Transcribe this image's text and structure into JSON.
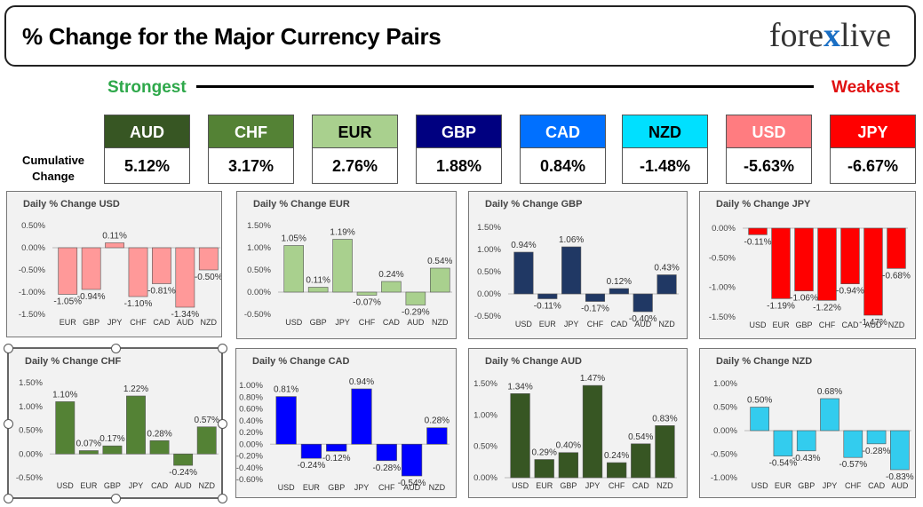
{
  "header": {
    "title": "% Change for the Major Currency Pairs",
    "logo_part1": "fore",
    "logo_x": "x",
    "logo_part2": "live"
  },
  "scale": {
    "strongest": "Strongest",
    "weakest": "Weakest"
  },
  "cumulative": {
    "label_line1": "Cumulative",
    "label_line2": "Change",
    "items": [
      {
        "ccy": "AUD",
        "value": "5.12%",
        "bg": "#375623",
        "fg": "#ffffff"
      },
      {
        "ccy": "CHF",
        "value": "3.17%",
        "bg": "#548235",
        "fg": "#ffffff"
      },
      {
        "ccy": "EUR",
        "value": "2.76%",
        "bg": "#a9d08e",
        "fg": "#000000"
      },
      {
        "ccy": "GBP",
        "value": "1.88%",
        "bg": "#000080",
        "fg": "#ffffff"
      },
      {
        "ccy": "CAD",
        "value": "0.84%",
        "bg": "#0070ff",
        "fg": "#ffffff"
      },
      {
        "ccy": "NZD",
        "value": "-1.48%",
        "bg": "#00e0ff",
        "fg": "#000000"
      },
      {
        "ccy": "USD",
        "value": "-5.63%",
        "bg": "#ff7c80",
        "fg": "#ffffff"
      },
      {
        "ccy": "JPY",
        "value": "-6.67%",
        "bg": "#ff0000",
        "fg": "#ffffff"
      }
    ]
  },
  "chart_data": [
    {
      "type": "bar",
      "title": "Daily % Change USD",
      "categories": [
        "EUR",
        "GBP",
        "JPY",
        "CHF",
        "CAD",
        "AUD",
        "NZD"
      ],
      "values": [
        -1.05,
        -0.94,
        0.11,
        -1.1,
        -0.81,
        -1.34,
        -0.5
      ],
      "labels": [
        "-1.05%",
        "-0.94%",
        "0.11%",
        "-1.10%",
        "-0.81%",
        "-1.34%",
        "-0.50%"
      ],
      "yticks": [
        "0.50%",
        "0.00%",
        "-0.50%",
        "-1.00%",
        "-1.50%"
      ],
      "ylim": [
        -1.5,
        0.5
      ],
      "color": "#ff9999"
    },
    {
      "type": "bar",
      "title": "Daily % Change EUR",
      "categories": [
        "USD",
        "GBP",
        "JPY",
        "CHF",
        "CAD",
        "AUD",
        "NZD"
      ],
      "values": [
        1.05,
        0.11,
        1.19,
        -0.07,
        0.24,
        -0.29,
        0.54
      ],
      "labels": [
        "1.05%",
        "0.11%",
        "1.19%",
        "-0.07%",
        "0.24%",
        "-0.29%",
        "0.54%"
      ],
      "yticks": [
        "1.50%",
        "1.00%",
        "0.50%",
        "0.00%",
        "-0.50%"
      ],
      "ylim": [
        -0.5,
        1.5
      ],
      "color": "#a9d08e"
    },
    {
      "type": "bar",
      "title": "Daily % Change GBP",
      "categories": [
        "USD",
        "EUR",
        "JPY",
        "CHF",
        "CAD",
        "AUD",
        "NZD"
      ],
      "values": [
        0.94,
        -0.11,
        1.06,
        -0.17,
        0.12,
        -0.4,
        0.43
      ],
      "labels": [
        "0.94%",
        "-0.11%",
        "1.06%",
        "-0.17%",
        "0.12%",
        "-0.40%",
        "0.43%"
      ],
      "yticks": [
        "1.50%",
        "1.00%",
        "0.50%",
        "0.00%",
        "-0.50%"
      ],
      "ylim": [
        -0.5,
        1.5
      ],
      "color": "#203864"
    },
    {
      "type": "bar",
      "title": "Daily % Change JPY",
      "categories": [
        "USD",
        "EUR",
        "GBP",
        "CHF",
        "CAD",
        "AUD",
        "NZD"
      ],
      "values": [
        -0.11,
        -1.19,
        -1.06,
        -1.22,
        -0.94,
        -1.47,
        -0.68
      ],
      "labels": [
        "-0.11%",
        "-1.19%",
        "-1.06%",
        "-1.22%",
        "-0.94%",
        "-1.47%",
        "-0.68%"
      ],
      "yticks": [
        "0.00%",
        "-0.50%",
        "-1.00%",
        "-1.50%"
      ],
      "ylim": [
        -1.5,
        0
      ],
      "color": "#ff0000"
    },
    {
      "type": "bar",
      "title": "Daily % Change CHF",
      "categories": [
        "USD",
        "EUR",
        "GBP",
        "JPY",
        "CAD",
        "AUD",
        "NZD"
      ],
      "values": [
        1.1,
        0.07,
        0.17,
        1.22,
        0.28,
        -0.24,
        0.57
      ],
      "labels": [
        "1.10%",
        "0.07%",
        "0.17%",
        "1.22%",
        "0.28%",
        "-0.24%",
        "0.57%"
      ],
      "yticks": [
        "1.50%",
        "1.00%",
        "0.50%",
        "0.00%",
        "-0.50%"
      ],
      "ylim": [
        -0.5,
        1.5
      ],
      "color": "#548235"
    },
    {
      "type": "bar",
      "title": "Daily % Change CAD",
      "categories": [
        "USD",
        "EUR",
        "GBP",
        "JPY",
        "CHF",
        "AUD",
        "NZD"
      ],
      "values": [
        0.81,
        -0.24,
        -0.12,
        0.94,
        -0.28,
        -0.54,
        0.28
      ],
      "labels": [
        "0.81%",
        "-0.24%",
        "-0.12%",
        "0.94%",
        "-0.28%",
        "-0.54%",
        "0.28%"
      ],
      "yticks": [
        "1.00%",
        "0.80%",
        "0.60%",
        "0.40%",
        "0.20%",
        "0.00%",
        "-0.20%",
        "-0.40%",
        "-0.60%"
      ],
      "ylim": [
        -0.6,
        1.0
      ],
      "color": "#0000ff"
    },
    {
      "type": "bar",
      "title": "Daily % Change AUD",
      "categories": [
        "USD",
        "EUR",
        "GBP",
        "JPY",
        "CHF",
        "CAD",
        "NZD"
      ],
      "values": [
        1.34,
        0.29,
        0.4,
        1.47,
        0.24,
        0.54,
        0.83
      ],
      "labels": [
        "1.34%",
        "0.29%",
        "0.40%",
        "1.47%",
        "0.24%",
        "0.54%",
        "0.83%"
      ],
      "yticks": [
        "1.50%",
        "1.00%",
        "0.50%",
        "0.00%"
      ],
      "ylim": [
        0,
        1.5
      ],
      "color": "#375623"
    },
    {
      "type": "bar",
      "title": "Daily % Change NZD",
      "categories": [
        "USD",
        "EUR",
        "GBP",
        "JPY",
        "CHF",
        "CAD",
        "AUD"
      ],
      "values": [
        0.5,
        -0.54,
        -0.43,
        0.68,
        -0.57,
        -0.28,
        -0.83
      ],
      "labels": [
        "0.50%",
        "-0.54%",
        "-0.43%",
        "0.68%",
        "-0.57%",
        "-0.28%",
        "-0.83%"
      ],
      "yticks": [
        "1.00%",
        "0.50%",
        "0.00%",
        "-0.50%",
        "-1.00%"
      ],
      "ylim": [
        -1.0,
        1.0
      ],
      "color": "#33ccee"
    }
  ]
}
